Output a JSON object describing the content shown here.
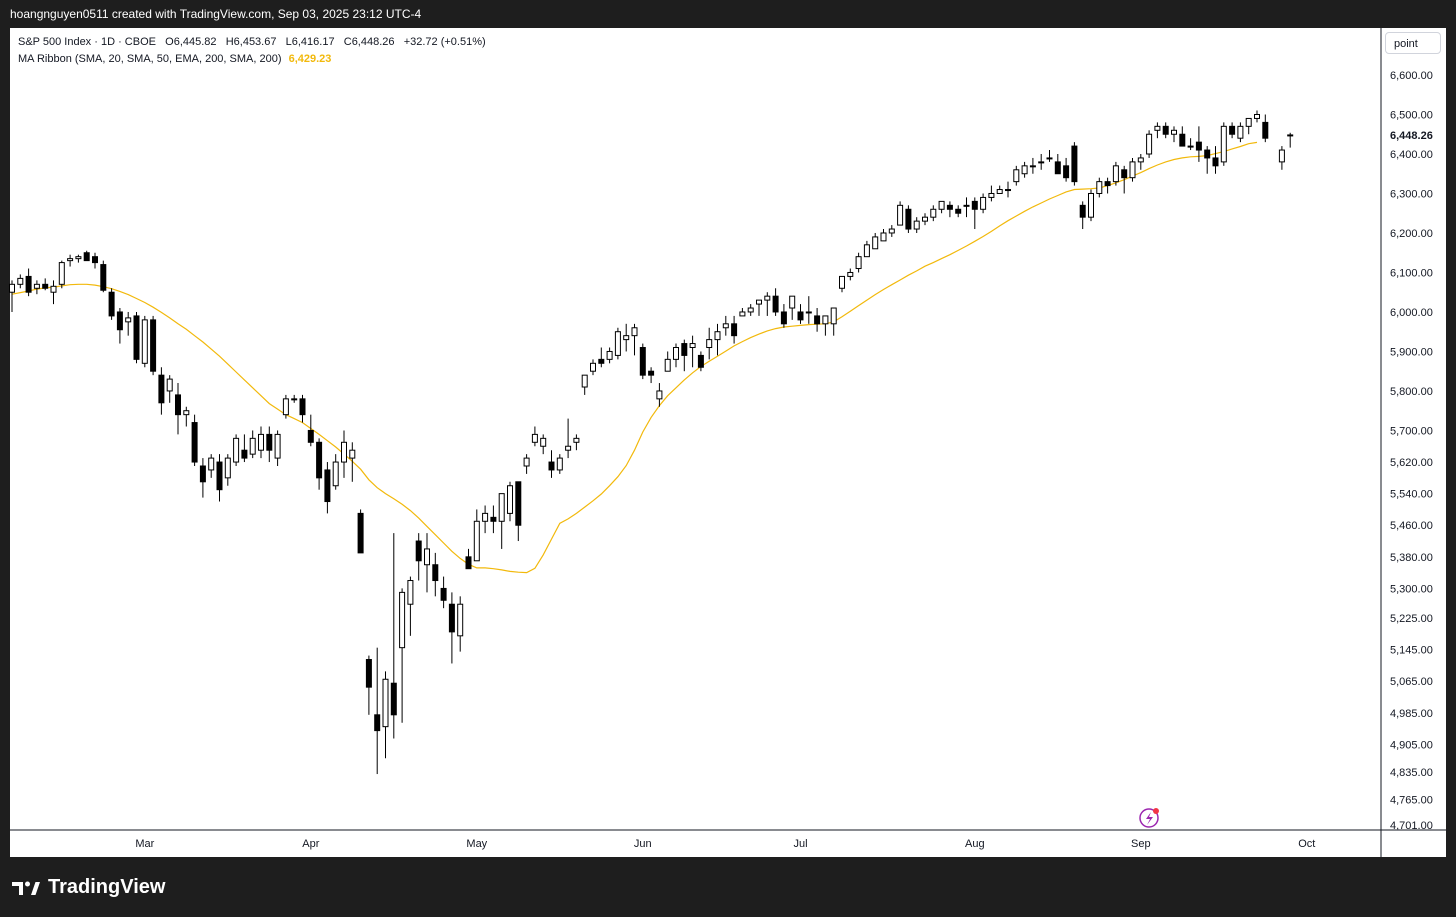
{
  "header": {
    "caption": "hoangnguyen0511 created with TradingView.com, Sep 03, 2025 23:12 UTC-4"
  },
  "legend": {
    "symbol_line": "S&P 500 Index · 1D · CBOE",
    "open_label": "O6,445.82",
    "high_label": "H6,453.67",
    "low_label": "L6,416.17",
    "close_label": "C6,448.26",
    "change_label": "+32.72 (+0.51%)",
    "ma_line": "MA Ribbon (SMA, 20, SMA, 50, EMA, 200, SMA, 200)",
    "ma_value": "6,429.23"
  },
  "scale_button": "point",
  "brand": "TradingView",
  "colors": {
    "ma_line": "#f2b90c",
    "candle_up_fill": "#ffffff",
    "candle_down_fill": "#000000",
    "candle_outline": "#000000",
    "last_price_color": "#131722",
    "alert_icon": "#9c27b0"
  },
  "chart_data": {
    "type": "candlestick",
    "symbol": "S&P 500 Index",
    "interval": "1D",
    "ylim": [
      4701,
      6640
    ],
    "y_ticks": [
      {
        "label": "6,600.00",
        "value": 6600
      },
      {
        "label": "6,500.00",
        "value": 6500
      },
      {
        "label": "6,400.00",
        "value": 6400
      },
      {
        "label": "6,300.00",
        "value": 6300
      },
      {
        "label": "6,200.00",
        "value": 6200
      },
      {
        "label": "6,100.00",
        "value": 6100
      },
      {
        "label": "6,000.00",
        "value": 6000
      },
      {
        "label": "5,900.00",
        "value": 5900
      },
      {
        "label": "5,800.00",
        "value": 5800
      },
      {
        "label": "5,700.00",
        "value": 5700
      },
      {
        "label": "5,620.00",
        "value": 5620
      },
      {
        "label": "5,540.00",
        "value": 5540
      },
      {
        "label": "5,460.00",
        "value": 5460
      },
      {
        "label": "5,380.00",
        "value": 5380
      },
      {
        "label": "5,300.00",
        "value": 5300
      },
      {
        "label": "5,225.00",
        "value": 5225
      },
      {
        "label": "5,145.00",
        "value": 5145
      },
      {
        "label": "5,065.00",
        "value": 5065
      },
      {
        "label": "4,985.00",
        "value": 4985
      },
      {
        "label": "4,905.00",
        "value": 4905
      },
      {
        "label": "4,835.00",
        "value": 4835
      },
      {
        "label": "4,765.00",
        "value": 4765
      },
      {
        "label": "4,701.00",
        "value": 4701
      }
    ],
    "last_price": {
      "label": "6,448.26",
      "value": 6448.26
    },
    "x_ticks": [
      {
        "label": "Mar",
        "bar": 16
      },
      {
        "label": "Apr",
        "bar": 36
      },
      {
        "label": "May",
        "bar": 56
      },
      {
        "label": "Jun",
        "bar": 76
      },
      {
        "label": "Jul",
        "bar": 95
      },
      {
        "label": "Aug",
        "bar": 116
      },
      {
        "label": "Sep",
        "bar": 136
      },
      {
        "label": "Oct",
        "bar": 156
      }
    ],
    "candles": [
      [
        6050,
        6080,
        6000,
        6070
      ],
      [
        6070,
        6095,
        6060,
        6085
      ],
      [
        6090,
        6110,
        6040,
        6050
      ],
      [
        6060,
        6080,
        6045,
        6070
      ],
      [
        6070,
        6085,
        6055,
        6060
      ],
      [
        6050,
        6080,
        6020,
        6065
      ],
      [
        6070,
        6130,
        6060,
        6125
      ],
      [
        6130,
        6145,
        6115,
        6135
      ],
      [
        6135,
        6145,
        6125,
        6140
      ],
      [
        6150,
        6155,
        6130,
        6130
      ],
      [
        6140,
        6150,
        6110,
        6125
      ],
      [
        6120,
        6130,
        6050,
        6055
      ],
      [
        6050,
        6060,
        5980,
        5990
      ],
      [
        6000,
        6010,
        5920,
        5955
      ],
      [
        5975,
        6000,
        5940,
        5985
      ],
      [
        5990,
        6000,
        5870,
        5880
      ],
      [
        5870,
        5990,
        5860,
        5980
      ],
      [
        5980,
        5990,
        5840,
        5850
      ],
      [
        5840,
        5860,
        5740,
        5770
      ],
      [
        5800,
        5840,
        5770,
        5830
      ],
      [
        5790,
        5820,
        5690,
        5740
      ],
      [
        5740,
        5760,
        5710,
        5750
      ],
      [
        5720,
        5740,
        5610,
        5620
      ],
      [
        5610,
        5630,
        5530,
        5570
      ],
      [
        5600,
        5640,
        5580,
        5630
      ],
      [
        5620,
        5640,
        5520,
        5550
      ],
      [
        5580,
        5640,
        5560,
        5630
      ],
      [
        5620,
        5690,
        5610,
        5680
      ],
      [
        5650,
        5690,
        5620,
        5630
      ],
      [
        5640,
        5700,
        5630,
        5680
      ],
      [
        5650,
        5710,
        5630,
        5690
      ],
      [
        5690,
        5710,
        5620,
        5650
      ],
      [
        5630,
        5700,
        5610,
        5690
      ],
      [
        5740,
        5790,
        5730,
        5780
      ],
      [
        5780,
        5790,
        5770,
        5780
      ],
      [
        5780,
        5790,
        5720,
        5740
      ],
      [
        5700,
        5740,
        5660,
        5670
      ],
      [
        5670,
        5680,
        5550,
        5580
      ],
      [
        5600,
        5620,
        5490,
        5520
      ],
      [
        5560,
        5640,
        5550,
        5620
      ],
      [
        5620,
        5700,
        5580,
        5670
      ],
      [
        5630,
        5670,
        5570,
        5650
      ],
      [
        5490,
        5500,
        5390,
        5390
      ],
      [
        5120,
        5130,
        4980,
        5050
      ],
      [
        4980,
        5150,
        4830,
        4940
      ],
      [
        4950,
        5090,
        4870,
        5070
      ],
      [
        5060,
        5440,
        4920,
        4980
      ],
      [
        5150,
        5300,
        4960,
        5290
      ],
      [
        5260,
        5330,
        5180,
        5320
      ],
      [
        5420,
        5440,
        5320,
        5370
      ],
      [
        5360,
        5440,
        5290,
        5400
      ],
      [
        5360,
        5390,
        5280,
        5320
      ],
      [
        5300,
        5330,
        5250,
        5270
      ],
      [
        5260,
        5290,
        5110,
        5190
      ],
      [
        5180,
        5280,
        5140,
        5260
      ],
      [
        5380,
        5400,
        5350,
        5350
      ],
      [
        5370,
        5500,
        5370,
        5470
      ],
      [
        5470,
        5510,
        5440,
        5490
      ],
      [
        5480,
        5510,
        5440,
        5470
      ],
      [
        5470,
        5540,
        5400,
        5540
      ],
      [
        5490,
        5570,
        5470,
        5560
      ],
      [
        5570,
        5570,
        5420,
        5460
      ],
      [
        5610,
        5640,
        5590,
        5630
      ],
      [
        5670,
        5710,
        5660,
        5690
      ],
      [
        5660,
        5690,
        5640,
        5680
      ],
      [
        5620,
        5650,
        5580,
        5600
      ],
      [
        5600,
        5640,
        5590,
        5630
      ],
      [
        5650,
        5730,
        5630,
        5660
      ],
      [
        5670,
        5690,
        5650,
        5680
      ],
      [
        5810,
        5840,
        5790,
        5840
      ],
      [
        5850,
        5880,
        5840,
        5870
      ],
      [
        5880,
        5910,
        5860,
        5870
      ],
      [
        5880,
        5910,
        5870,
        5900
      ],
      [
        5890,
        5960,
        5880,
        5950
      ],
      [
        5930,
        5970,
        5900,
        5940
      ],
      [
        5940,
        5970,
        5890,
        5960
      ],
      [
        5910,
        5920,
        5830,
        5840
      ],
      [
        5850,
        5860,
        5820,
        5840
      ],
      [
        5780,
        5820,
        5760,
        5800
      ],
      [
        5850,
        5900,
        5850,
        5880
      ],
      [
        5880,
        5920,
        5860,
        5910
      ],
      [
        5920,
        5930,
        5850,
        5890
      ],
      [
        5910,
        5940,
        5860,
        5920
      ],
      [
        5890,
        5900,
        5850,
        5860
      ],
      [
        5910,
        5960,
        5880,
        5930
      ],
      [
        5930,
        5970,
        5890,
        5950
      ],
      [
        5960,
        5990,
        5940,
        5970
      ],
      [
        5970,
        5990,
        5920,
        5940
      ],
      [
        5990,
        6010,
        5990,
        6000
      ],
      [
        6000,
        6020,
        5990,
        6010
      ],
      [
        6020,
        6030,
        5990,
        6030
      ],
      [
        6030,
        6050,
        5990,
        6040
      ],
      [
        6040,
        6060,
        5990,
        6000
      ],
      [
        6000,
        6020,
        5960,
        5970
      ],
      [
        6010,
        6040,
        5980,
        6040
      ],
      [
        6000,
        6020,
        5970,
        5980
      ],
      [
        6000,
        6040,
        5970,
        6000
      ],
      [
        5990,
        6010,
        5950,
        5970
      ],
      [
        5970,
        5990,
        5940,
        5990
      ],
      [
        5970,
        6010,
        5940,
        6010
      ],
      [
        6060,
        6090,
        6050,
        6090
      ],
      [
        6090,
        6110,
        6080,
        6100
      ],
      [
        6110,
        6150,
        6100,
        6140
      ],
      [
        6140,
        6180,
        6140,
        6170
      ],
      [
        6160,
        6200,
        6160,
        6190
      ],
      [
        6180,
        6210,
        6180,
        6200
      ],
      [
        6200,
        6220,
        6190,
        6210
      ],
      [
        6220,
        6280,
        6220,
        6270
      ],
      [
        6260,
        6270,
        6200,
        6210
      ],
      [
        6210,
        6240,
        6200,
        6230
      ],
      [
        6230,
        6250,
        6220,
        6240
      ],
      [
        6240,
        6270,
        6230,
        6260
      ],
      [
        6260,
        6280,
        6250,
        6280
      ],
      [
        6270,
        6280,
        6240,
        6260
      ],
      [
        6260,
        6270,
        6240,
        6250
      ],
      [
        6270,
        6290,
        6240,
        6270
      ],
      [
        6280,
        6290,
        6210,
        6260
      ],
      [
        6260,
        6300,
        6250,
        6290
      ],
      [
        6290,
        6320,
        6280,
        6300
      ],
      [
        6300,
        6320,
        6300,
        6310
      ],
      [
        6310,
        6330,
        6290,
        6310
      ],
      [
        6330,
        6370,
        6320,
        6360
      ],
      [
        6350,
        6380,
        6340,
        6370
      ],
      [
        6370,
        6390,
        6350,
        6370
      ],
      [
        6380,
        6400,
        6360,
        6380
      ],
      [
        6390,
        6410,
        6380,
        6390
      ],
      [
        6380,
        6400,
        6350,
        6350
      ],
      [
        6370,
        6390,
        6330,
        6340
      ],
      [
        6420,
        6430,
        6320,
        6330
      ],
      [
        6270,
        6280,
        6210,
        6240
      ],
      [
        6240,
        6310,
        6230,
        6300
      ],
      [
        6300,
        6340,
        6290,
        6330
      ],
      [
        6330,
        6340,
        6300,
        6320
      ],
      [
        6330,
        6380,
        6320,
        6370
      ],
      [
        6360,
        6370,
        6300,
        6340
      ],
      [
        6340,
        6390,
        6330,
        6380
      ],
      [
        6380,
        6400,
        6360,
        6390
      ],
      [
        6400,
        6460,
        6390,
        6450
      ],
      [
        6460,
        6480,
        6440,
        6470
      ],
      [
        6470,
        6480,
        6440,
        6450
      ],
      [
        6450,
        6470,
        6430,
        6460
      ],
      [
        6450,
        6470,
        6420,
        6420
      ],
      [
        6420,
        6440,
        6410,
        6420
      ],
      [
        6430,
        6470,
        6380,
        6410
      ],
      [
        6410,
        6420,
        6350,
        6390
      ],
      [
        6390,
        6420,
        6350,
        6370
      ],
      [
        6380,
        6480,
        6370,
        6470
      ],
      [
        6470,
        6480,
        6440,
        6450
      ],
      [
        6440,
        6480,
        6430,
        6470
      ],
      [
        6470,
        6490,
        6450,
        6490
      ],
      [
        6490,
        6510,
        6480,
        6500
      ],
      [
        6480,
        6500,
        6430,
        6440
      ],
      null,
      [
        6380,
        6420,
        6360,
        6410
      ],
      [
        6445.82,
        6453.67,
        6416.17,
        6448.26
      ]
    ],
    "series": [
      {
        "name": "MA Ribbon (SMA, 20, SMA, 50, EMA, 200, SMA, 200)",
        "type": "line",
        "values": [
          6045,
          6049,
          6053,
          6058,
          6061,
          6063,
          6066,
          6069,
          6070,
          6070,
          6068,
          6064,
          6059,
          6052,
          6044,
          6034,
          6024,
          6012,
          5999,
          5985,
          5970,
          5956,
          5940,
          5924,
          5906,
          5888,
          5868,
          5848,
          5828,
          5808,
          5788,
          5768,
          5754,
          5740,
          5730,
          5720,
          5705,
          5690,
          5674,
          5658,
          5640,
          5622,
          5602,
          5575,
          5555,
          5540,
          5527,
          5513,
          5497,
          5478,
          5457,
          5436,
          5415,
          5394,
          5376,
          5361,
          5352,
          5352,
          5350,
          5347,
          5343,
          5341,
          5340,
          5351,
          5385,
          5425,
          5465,
          5476,
          5490,
          5506,
          5522,
          5539,
          5560,
          5583,
          5611,
          5650,
          5696,
          5733,
          5763,
          5788,
          5808,
          5828,
          5846,
          5862,
          5875,
          5888,
          5901,
          5914,
          5925,
          5935,
          5944,
          5952,
          5958,
          5962,
          5964,
          5966,
          5968,
          5969,
          5970,
          5975,
          5988,
          6002,
          6016,
          6030,
          6044,
          6057,
          6069,
          6081,
          6093,
          6104,
          6116,
          6125,
          6135,
          6145,
          6156,
          6167,
          6179,
          6191,
          6204,
          6218,
          6231,
          6243,
          6255,
          6266,
          6276,
          6286,
          6295,
          6304,
          6310,
          6311,
          6312,
          6314,
          6320,
          6327,
          6335,
          6344,
          6353,
          6363,
          6372,
          6380,
          6386,
          6390,
          6393,
          6394,
          6396,
          6401,
          6406,
          6413,
          6419,
          6426,
          6429.23
        ]
      }
    ]
  }
}
